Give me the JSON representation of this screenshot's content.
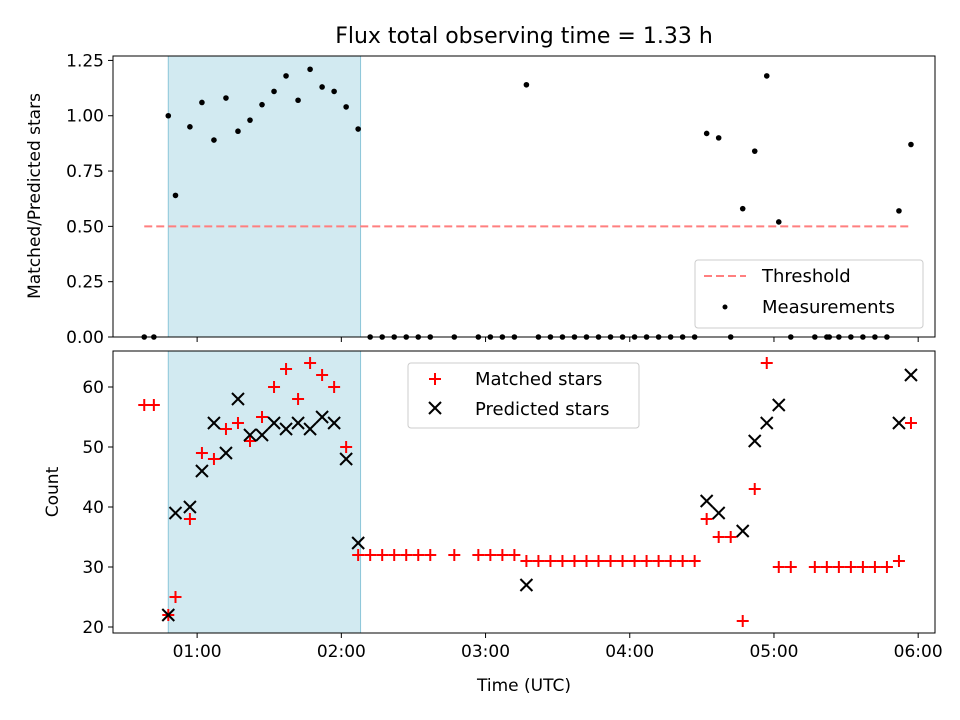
{
  "chart_data": [
    {
      "type": "scatter",
      "title": "Flux total observing time = 1.33 h",
      "xlabel": "",
      "ylabel": "Matched/Predicted stars",
      "xlim": [
        "00:25",
        "06:07"
      ],
      "ylim": [
        0,
        1.27
      ],
      "yticks": [
        0,
        0.25,
        0.5,
        0.75,
        1.0,
        1.25
      ],
      "ytick_labels": [
        "0.00",
        "0.25",
        "0.50",
        "0.75",
        "1.00",
        "1.25"
      ],
      "xtick_labels": [
        "01:00",
        "02:00",
        "03:00",
        "04:00",
        "05:00",
        "06:00"
      ],
      "shaded_interval": [
        "00:48",
        "02:08"
      ],
      "shade_color": "#add8e6",
      "legend_position": "lower-right",
      "series": [
        {
          "name": "Threshold",
          "kind": "dashed-line",
          "color": "#ff7f7f",
          "points": [
            [
              "00:38",
              0.5
            ],
            [
              "05:57",
              0.5
            ]
          ]
        },
        {
          "name": "Measurements",
          "kind": "dot",
          "color": "#000000",
          "points": [
            [
              "00:38",
              0.0
            ],
            [
              "00:42",
              0.0
            ],
            [
              "00:48",
              1.0
            ],
            [
              "00:51",
              0.64
            ],
            [
              "00:57",
              0.95
            ],
            [
              "01:02",
              1.06
            ],
            [
              "01:07",
              0.89
            ],
            [
              "01:12",
              1.08
            ],
            [
              "01:17",
              0.93
            ],
            [
              "01:22",
              0.98
            ],
            [
              "01:27",
              1.05
            ],
            [
              "01:32",
              1.11
            ],
            [
              "01:37",
              1.18
            ],
            [
              "01:42",
              1.07
            ],
            [
              "01:47",
              1.21
            ],
            [
              "01:52",
              1.13
            ],
            [
              "01:57",
              1.11
            ],
            [
              "02:02",
              1.04
            ],
            [
              "02:07",
              0.94
            ],
            [
              "02:12",
              0.0
            ],
            [
              "02:17",
              0.0
            ],
            [
              "02:22",
              0.0
            ],
            [
              "02:27",
              0.0
            ],
            [
              "02:32",
              0.0
            ],
            [
              "02:37",
              0.0
            ],
            [
              "02:47",
              0.0
            ],
            [
              "02:57",
              0.0
            ],
            [
              "03:02",
              0.0
            ],
            [
              "03:07",
              0.0
            ],
            [
              "03:12",
              0.0
            ],
            [
              "03:17",
              1.14
            ],
            [
              "03:22",
              0.0
            ],
            [
              "03:27",
              0.0
            ],
            [
              "03:32",
              0.0
            ],
            [
              "03:37",
              0.0
            ],
            [
              "03:42",
              0.0
            ],
            [
              "03:47",
              0.0
            ],
            [
              "03:52",
              0.0
            ],
            [
              "03:57",
              0.0
            ],
            [
              "04:02",
              0.0
            ],
            [
              "04:07",
              0.0
            ],
            [
              "04:12",
              0.0
            ],
            [
              "04:17",
              0.0
            ],
            [
              "04:22",
              0.0
            ],
            [
              "04:27",
              0.0
            ],
            [
              "04:32",
              0.92
            ],
            [
              "04:37",
              0.9
            ],
            [
              "04:42",
              0.0
            ],
            [
              "04:47",
              0.58
            ],
            [
              "04:52",
              0.84
            ],
            [
              "04:57",
              1.18
            ],
            [
              "05:02",
              0.52
            ],
            [
              "05:07",
              0.0
            ],
            [
              "05:17",
              0.0
            ],
            [
              "05:22",
              0.0
            ],
            [
              "05:23",
              0.0
            ],
            [
              "05:27",
              0.0
            ],
            [
              "05:32",
              0.0
            ],
            [
              "05:37",
              0.0
            ],
            [
              "05:42",
              0.0
            ],
            [
              "05:47",
              0.0
            ],
            [
              "05:52",
              0.57
            ],
            [
              "05:57",
              0.87
            ]
          ]
        }
      ]
    },
    {
      "type": "scatter",
      "title": "",
      "xlabel": "Time (UTC)",
      "ylabel": "Count",
      "xlim": [
        "00:25",
        "06:07"
      ],
      "ylim": [
        19,
        66
      ],
      "yticks": [
        20,
        30,
        40,
        50,
        60
      ],
      "ytick_labels": [
        "20",
        "30",
        "40",
        "50",
        "60"
      ],
      "xtick_labels": [
        "01:00",
        "02:00",
        "03:00",
        "04:00",
        "05:00",
        "06:00"
      ],
      "shaded_interval": [
        "00:48",
        "02:08"
      ],
      "shade_color": "#add8e6",
      "legend_position": "top-center",
      "series": [
        {
          "name": "Matched stars",
          "kind": "plus",
          "color": "#ff0000",
          "points": [
            [
              "00:38",
              57
            ],
            [
              "00:42",
              57
            ],
            [
              "00:48",
              22
            ],
            [
              "00:51",
              25
            ],
            [
              "00:57",
              38
            ],
            [
              "01:02",
              49
            ],
            [
              "01:07",
              48
            ],
            [
              "01:12",
              53
            ],
            [
              "01:17",
              54
            ],
            [
              "01:22",
              51
            ],
            [
              "01:27",
              55
            ],
            [
              "01:32",
              60
            ],
            [
              "01:37",
              63
            ],
            [
              "01:42",
              58
            ],
            [
              "01:47",
              64
            ],
            [
              "01:52",
              62
            ],
            [
              "01:57",
              60
            ],
            [
              "02:02",
              50
            ],
            [
              "02:07",
              32
            ],
            [
              "02:12",
              32
            ],
            [
              "02:17",
              32
            ],
            [
              "02:22",
              32
            ],
            [
              "02:27",
              32
            ],
            [
              "02:32",
              32
            ],
            [
              "02:37",
              32
            ],
            [
              "02:47",
              32
            ],
            [
              "02:57",
              32
            ],
            [
              "03:02",
              32
            ],
            [
              "03:07",
              32
            ],
            [
              "03:12",
              32
            ],
            [
              "03:17",
              31
            ],
            [
              "03:22",
              31
            ],
            [
              "03:27",
              31
            ],
            [
              "03:32",
              31
            ],
            [
              "03:37",
              31
            ],
            [
              "03:42",
              31
            ],
            [
              "03:47",
              31
            ],
            [
              "03:52",
              31
            ],
            [
              "03:57",
              31
            ],
            [
              "04:02",
              31
            ],
            [
              "04:07",
              31
            ],
            [
              "04:12",
              31
            ],
            [
              "04:17",
              31
            ],
            [
              "04:22",
              31
            ],
            [
              "04:27",
              31
            ],
            [
              "04:32",
              38
            ],
            [
              "04:37",
              35
            ],
            [
              "04:42",
              35
            ],
            [
              "04:47",
              21
            ],
            [
              "04:52",
              43
            ],
            [
              "04:57",
              64
            ],
            [
              "05:02",
              30
            ],
            [
              "05:07",
              30
            ],
            [
              "05:17",
              30
            ],
            [
              "05:22",
              30
            ],
            [
              "05:27",
              30
            ],
            [
              "05:32",
              30
            ],
            [
              "05:37",
              30
            ],
            [
              "05:42",
              30
            ],
            [
              "05:47",
              30
            ],
            [
              "05:52",
              31
            ],
            [
              "05:57",
              54
            ]
          ]
        },
        {
          "name": "Predicted stars",
          "kind": "x",
          "color": "#000000",
          "points": [
            [
              "00:48",
              22
            ],
            [
              "00:51",
              39
            ],
            [
              "00:57",
              40
            ],
            [
              "01:02",
              46
            ],
            [
              "01:07",
              54
            ],
            [
              "01:12",
              49
            ],
            [
              "01:17",
              58
            ],
            [
              "01:22",
              52
            ],
            [
              "01:27",
              52
            ],
            [
              "01:32",
              54
            ],
            [
              "01:37",
              53
            ],
            [
              "01:42",
              54
            ],
            [
              "01:47",
              53
            ],
            [
              "01:52",
              55
            ],
            [
              "01:57",
              54
            ],
            [
              "02:02",
              48
            ],
            [
              "02:07",
              34
            ],
            [
              "03:17",
              27
            ],
            [
              "04:32",
              41
            ],
            [
              "04:37",
              39
            ],
            [
              "04:47",
              36
            ],
            [
              "04:52",
              51
            ],
            [
              "04:57",
              54
            ],
            [
              "05:02",
              57
            ],
            [
              "05:52",
              54
            ],
            [
              "05:57",
              62
            ]
          ]
        }
      ]
    }
  ]
}
